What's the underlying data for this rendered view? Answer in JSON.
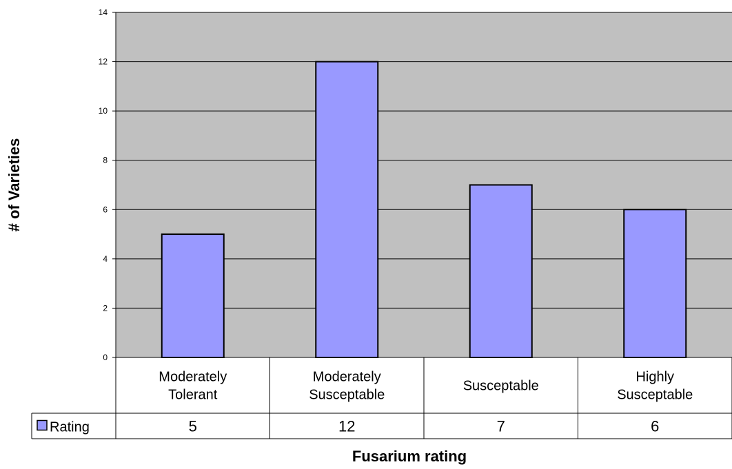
{
  "chart_data": {
    "type": "bar",
    "categories": [
      [
        "Moderately",
        "Tolerant"
      ],
      [
        "Moderately",
        "Susceptable"
      ],
      [
        "Susceptable"
      ],
      [
        "Highly",
        "Susceptable"
      ]
    ],
    "series": [
      {
        "name": "Rating",
        "values": [
          5,
          12,
          7,
          6
        ],
        "color": "#9999ff"
      }
    ],
    "xlabel": "Fusarium rating",
    "ylabel": "# of Varieties",
    "ylim": [
      0,
      14
    ],
    "yticks": [
      0,
      2,
      4,
      6,
      8,
      10,
      12,
      14
    ],
    "grid": true,
    "legend": "data-table",
    "plot_background": "#c0c0c0",
    "bar_border": "#000000",
    "gridline_color": "#000000"
  }
}
